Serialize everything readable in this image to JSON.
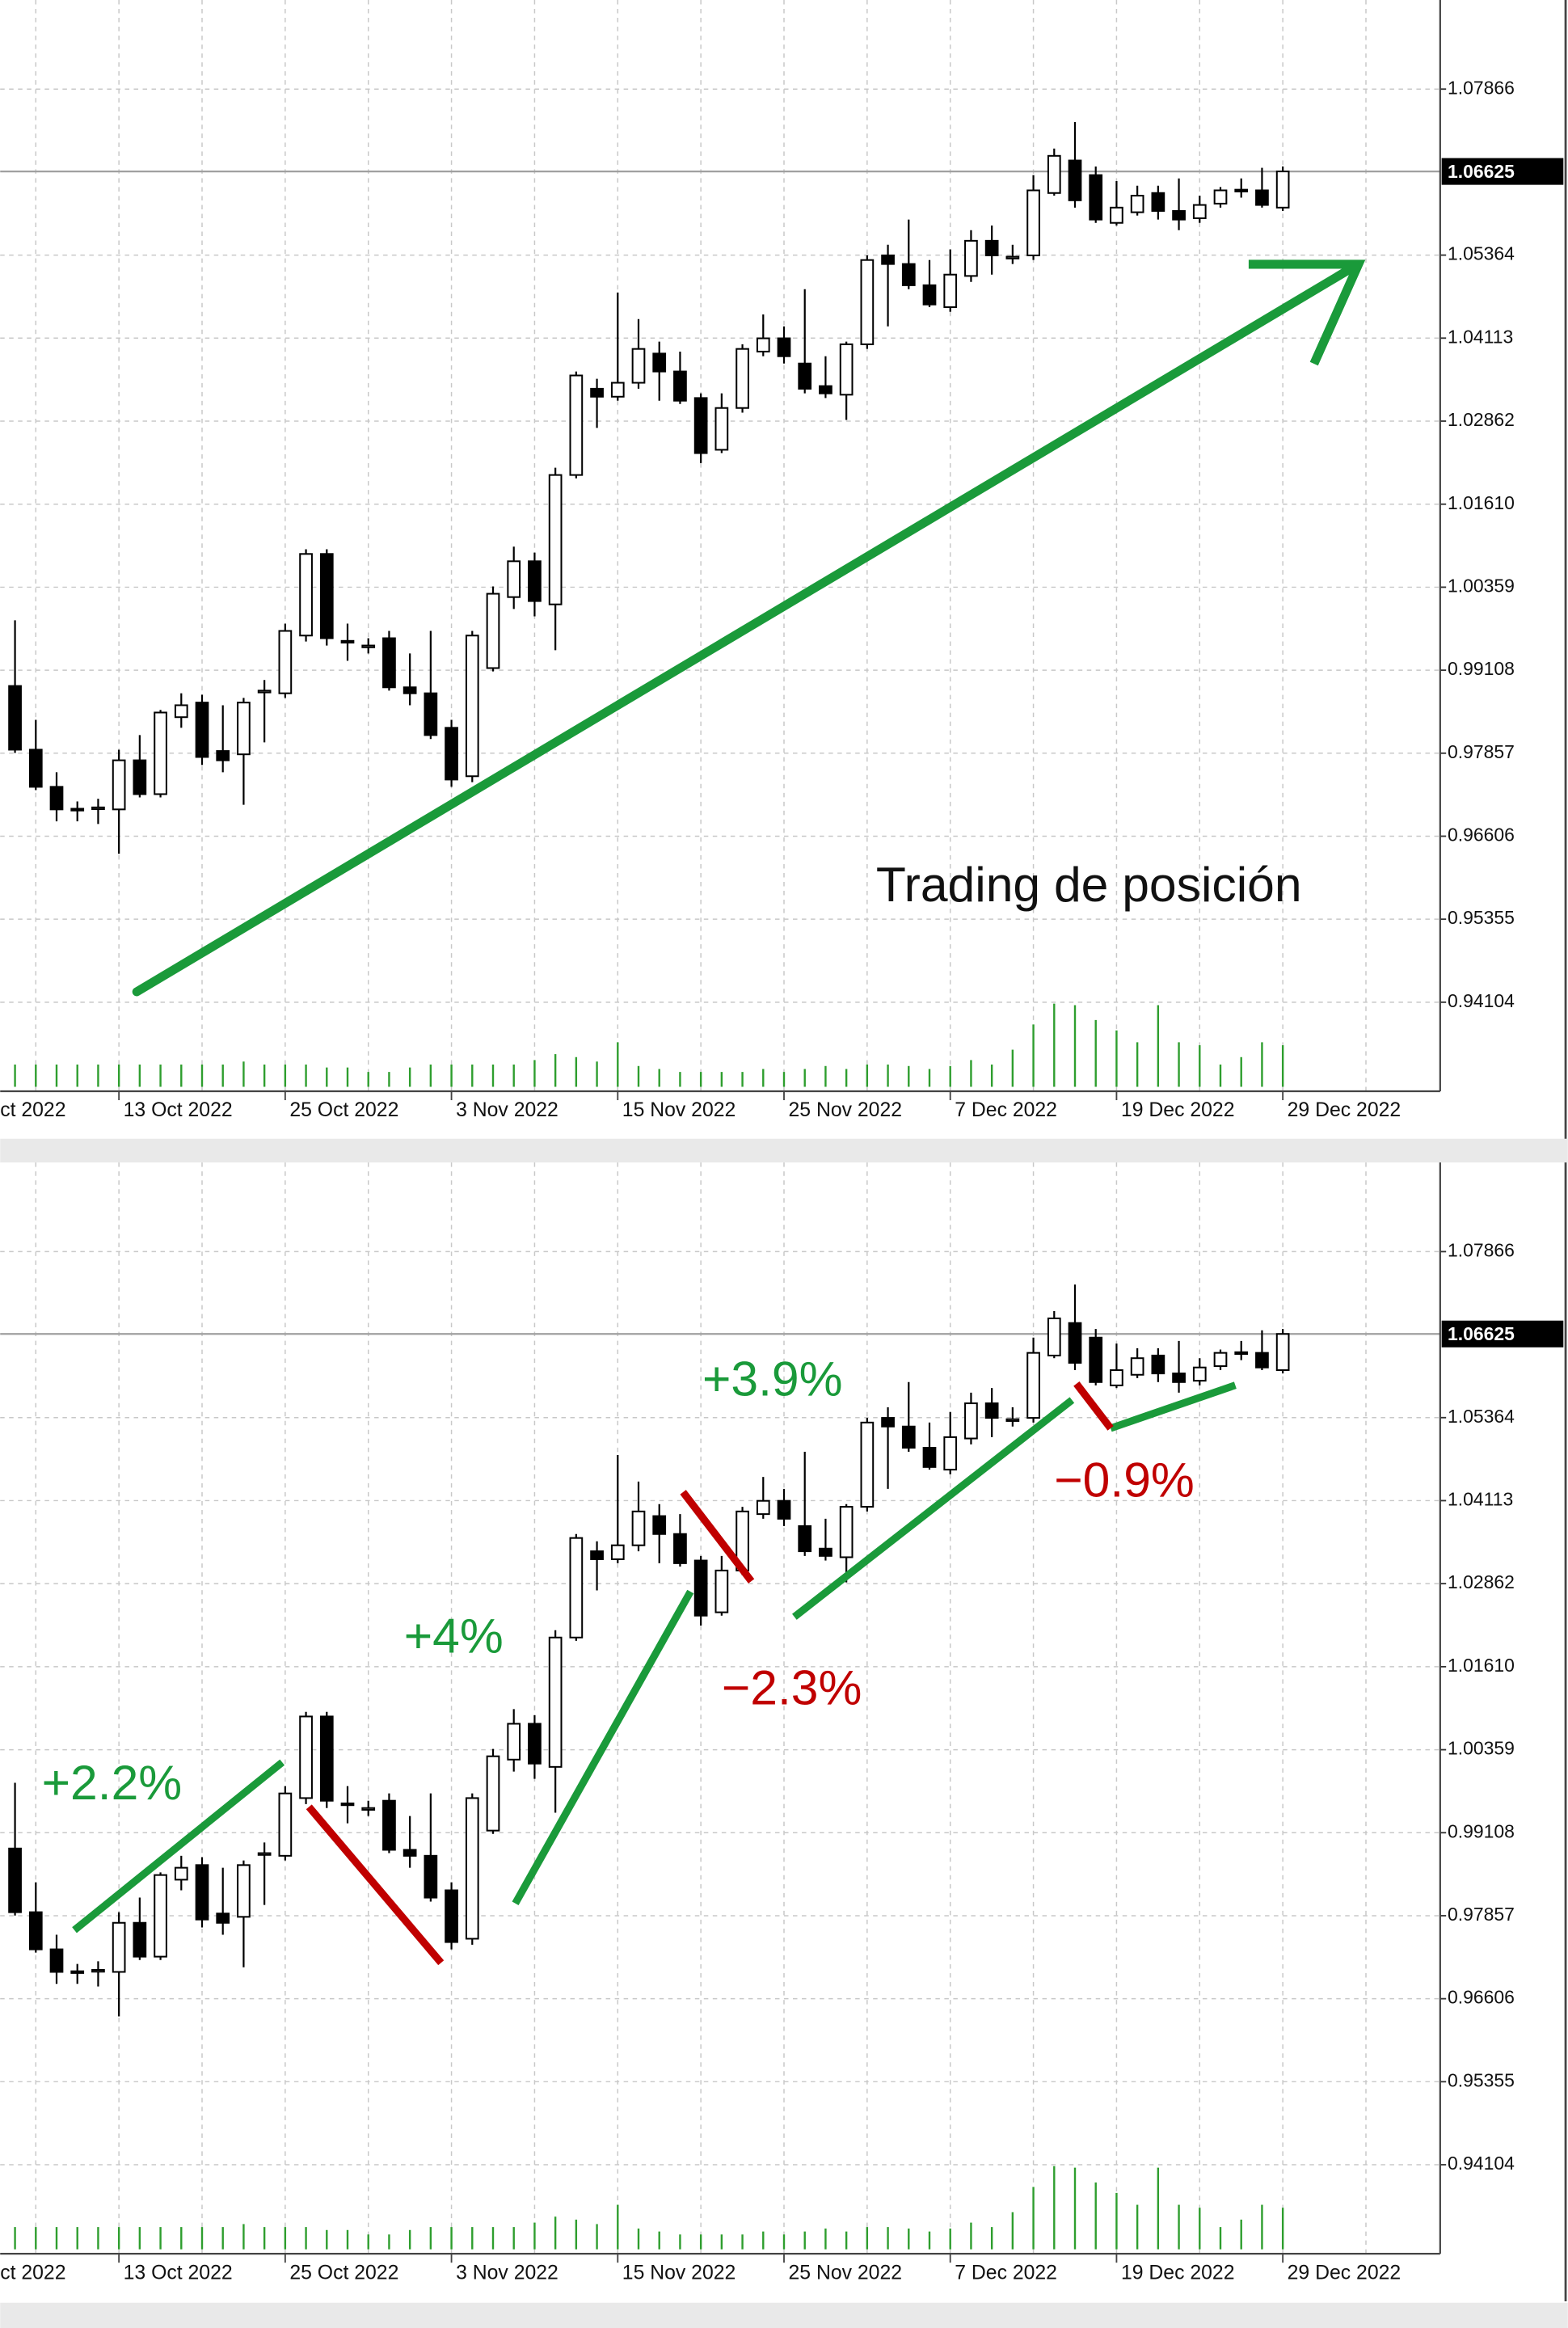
{
  "chart_data": {
    "type": "candlestick",
    "categories": [
      "ct 2022",
      null,
      null,
      null,
      null,
      null,
      null,
      null,
      "13 Oct 2022",
      null,
      null,
      null,
      null,
      null,
      null,
      null,
      "25 Oct 2022",
      null,
      null,
      null,
      null,
      null,
      null,
      null,
      "3 Nov 2022",
      null,
      null,
      null,
      null,
      null,
      null,
      null,
      "15 Nov 2022",
      null,
      null,
      null,
      null,
      null,
      null,
      null,
      "25 Nov 2022",
      null,
      null,
      null,
      null,
      null,
      null,
      null,
      "7 Dec 2022",
      null,
      null,
      null,
      null,
      null,
      null,
      null,
      "19 Dec 2022",
      null,
      null,
      null,
      null,
      null,
      null,
      null,
      "29 Dec 2022"
    ],
    "open": [
      null,
      null,
      null,
      0.9887,
      0.9791,
      0.9735,
      0.9702,
      0.9703,
      0.9701,
      0.9775,
      0.9724,
      0.984,
      0.9862,
      0.9789,
      0.9784,
      0.9879,
      0.9876,
      0.9963,
      1.0086,
      0.9955,
      0.9947,
      0.9959,
      0.9885,
      0.9876,
      0.9824,
      0.9751,
      0.9914,
      1.0021,
      1.0075,
      1.001,
      1.0205,
      1.0335,
      1.0323,
      1.0344,
      1.0388,
      1.0361,
      1.0321,
      1.0243,
      1.0306,
      1.0391,
      1.0411,
      1.0373,
      1.0339,
      1.0326,
      1.0402,
      1.0536,
      1.0523,
      1.0491,
      1.0458,
      1.0505,
      1.0558,
      1.0533,
      1.0536,
      1.063,
      1.0679,
      1.0657,
      1.0585,
      1.0601,
      1.063,
      1.0603,
      1.0592,
      1.0614,
      1.0635,
      1.0634,
      1.0608
    ],
    "high": [
      null,
      null,
      null,
      0.9986,
      0.9836,
      0.9757,
      0.9713,
      0.9717,
      0.9791,
      0.9813,
      0.9851,
      0.9876,
      0.9874,
      0.9858,
      0.9869,
      0.9896,
      0.9981,
      1.0093,
      1.0093,
      0.9981,
      0.9959,
      0.997,
      0.9936,
      0.997,
      0.9836,
      0.997,
      1.0037,
      1.0097,
      1.0088,
      1.0216,
      1.0361,
      1.035,
      1.048,
      1.044,
      1.0406,
      1.0391,
      1.0328,
      1.0328,
      1.0402,
      1.0447,
      1.0429,
      1.0485,
      1.0384,
      1.0406,
      1.0536,
      1.0552,
      1.059,
      1.0529,
      1.0545,
      1.0574,
      1.0581,
      1.0552,
      1.0657,
      1.0697,
      1.0737,
      1.067,
      1.0648,
      1.0641,
      1.0641,
      1.0652,
      1.0626,
      1.0639,
      1.0652,
      1.0668,
      1.067
    ],
    "low": [
      null,
      null,
      null,
      0.9786,
      0.973,
      0.9683,
      0.9683,
      0.9679,
      0.9634,
      0.9719,
      0.9719,
      0.9824,
      0.9768,
      0.9757,
      0.9708,
      0.9802,
      0.9869,
      0.9954,
      0.9948,
      0.9925,
      0.9936,
      0.988,
      0.9858,
      0.9807,
      0.9735,
      0.9742,
      0.9909,
      1.0003,
      0.9992,
      0.9941,
      1.02,
      1.0276,
      1.0317,
      1.0335,
      1.0317,
      1.0312,
      1.0223,
      1.0238,
      1.0299,
      1.0384,
      1.0373,
      1.0328,
      1.0321,
      1.0288,
      1.0395,
      1.0429,
      1.0485,
      1.0458,
      1.0451,
      1.0496,
      1.0507,
      1.0523,
      1.0529,
      1.0626,
      1.0608,
      1.0585,
      1.0581,
      1.0596,
      1.059,
      1.0574,
      1.0585,
      1.0608,
      1.0623,
      1.0608,
      1.0603
    ],
    "close": [
      null,
      null,
      null,
      0.9791,
      0.9735,
      0.9701,
      0.9701,
      0.9704,
      0.9775,
      0.9724,
      0.9847,
      0.9858,
      0.978,
      0.9775,
      0.9862,
      0.988,
      0.997,
      1.0086,
      0.9959,
      0.9954,
      0.9948,
      0.9885,
      0.9876,
      0.9813,
      0.9746,
      0.9963,
      1.0026,
      1.0075,
      1.0015,
      1.0205,
      1.0355,
      1.0323,
      1.0344,
      1.0395,
      1.0361,
      1.0317,
      1.0238,
      1.0306,
      1.0395,
      1.0411,
      1.0384,
      1.0335,
      1.0328,
      1.0402,
      1.0529,
      1.0523,
      1.0491,
      1.0462,
      1.0507,
      1.0558,
      1.0536,
      1.0534,
      1.0634,
      1.0686,
      1.0619,
      1.059,
      1.0608,
      1.0626,
      1.0603,
      1.059,
      1.0612,
      1.0634,
      1.0634,
      1.0612,
      1.06625
    ],
    "volume": [
      null,
      null,
      null,
      15,
      15,
      15,
      15,
      15,
      15,
      15,
      15,
      15,
      15,
      15,
      17,
      15,
      15,
      15,
      13,
      13,
      10,
      10,
      13,
      15,
      15,
      15,
      15,
      15,
      18,
      22,
      20,
      17,
      30,
      14,
      12,
      10,
      10,
      10,
      10,
      12,
      10,
      12,
      14,
      12,
      15,
      15,
      14,
      12,
      14,
      18,
      15,
      25,
      42,
      56,
      55,
      45,
      38,
      30,
      55,
      30,
      28,
      15,
      20,
      30,
      28
    ],
    "up_color": "#ffffff",
    "down_color": "#000000",
    "volume_color": "#2e9e2e",
    "ylim": [
      0.92762,
      1.09209
    ],
    "yticks": [
      1.07866,
      1.05364,
      1.04113,
      1.02862,
      {
        "value": 1.0161,
        "label": "1.01610"
      },
      1.00359,
      0.99108,
      0.97857,
      0.96606,
      0.95355,
      0.94104
    ],
    "last_price": 1.06625,
    "grid": true,
    "panels": [
      {
        "annotation": "Trading de posición"
      },
      {
        "annotations": [
          "+2.2%",
          "+4%",
          "+3.9%",
          "−2.3%",
          "−0.9%"
        ]
      }
    ]
  }
}
